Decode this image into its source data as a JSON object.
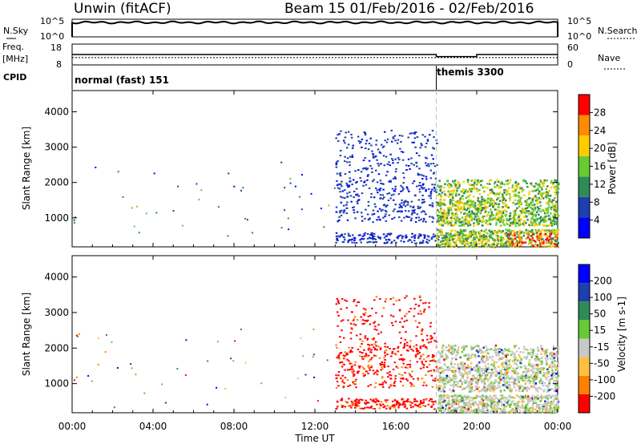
{
  "header": {
    "station": "Unwin (fitACF)",
    "beam_date": "Beam 15  01/Feb/2016 - 02/Feb/2016"
  },
  "time_axis": {
    "label": "Time UT",
    "ticks": [
      "00:00",
      "04:00",
      "08:00",
      "12:00",
      "16:00",
      "20:00",
      "00:00"
    ],
    "range_hours": [
      0,
      24
    ]
  },
  "noise_panel": {
    "left_label": "N.Sky",
    "right_label": "N.Search",
    "left_ticks": [
      "10^5",
      "10^0"
    ],
    "right_ticks": [
      "10^5",
      "10^0"
    ]
  },
  "freq_panel": {
    "left_label_1": "Freq.",
    "left_label_2": "[MHz]",
    "right_label": "Nave",
    "left_ticks": [
      "18",
      "8"
    ],
    "right_ticks": [
      "60",
      "0"
    ],
    "freq_mhz": 11.5,
    "nave_segments": [
      {
        "start_h": 0,
        "end_h": 18.0,
        "nave": 30
      },
      {
        "start_h": 18.0,
        "end_h": 20.0,
        "nave": 24
      },
      {
        "start_h": 20.0,
        "end_h": 24.0,
        "nave": 30
      }
    ]
  },
  "cpid_panel": {
    "label": "CPID",
    "modes": [
      {
        "name": "normal (fast) 151",
        "start_h": 0,
        "end_h": 18.0
      },
      {
        "name": "themis 3300",
        "start_h": 18.0,
        "end_h": 24.0
      }
    ]
  },
  "colors": {
    "power_scale": [
      "#0000ff",
      "#1d3fb0",
      "#2e8b57",
      "#66cc33",
      "#ffcc00",
      "#ff8c00",
      "#ff0000"
    ],
    "velocity_scale": [
      "#ff0000",
      "#ff8000",
      "#ffc040",
      "#c8c8c8",
      "#66cc33",
      "#2e8b57",
      "#1d3fb0",
      "#0000ff"
    ]
  },
  "chart_data": [
    {
      "type": "heatmap",
      "title": "",
      "xlabel": "Time UT",
      "ylabel": "Slant Range [km]",
      "ylim": [
        180,
        4600
      ],
      "yticks": [
        "1000",
        "2000",
        "3000",
        "4000"
      ],
      "colorbar_label": "Power [dB]",
      "colorbar_ticks": [
        "4",
        "8",
        "12",
        "16",
        "20",
        "24",
        "28"
      ],
      "scatter_regions": [
        {
          "t_start": 13.0,
          "t_end": 18.0,
          "r_start": 300,
          "r_end": 3500,
          "level": "low"
        },
        {
          "t_start": 18.0,
          "t_end": 24.0,
          "r_start": 250,
          "r_end": 2100,
          "level": "mixed"
        },
        {
          "t_start": 21.5,
          "t_end": 23.5,
          "r_start": 200,
          "r_end": 600,
          "level": "high"
        }
      ]
    },
    {
      "type": "heatmap",
      "title": "",
      "xlabel": "Time UT",
      "ylabel": "Slant Range [km]",
      "ylim": [
        180,
        4600
      ],
      "yticks": [
        "1000",
        "2000",
        "3000",
        "4000"
      ],
      "colorbar_label": "Velocity [m s-1]",
      "colorbar_ticks": [
        "200",
        "100",
        "50",
        "15",
        "-15",
        "-50",
        "-100",
        "-200"
      ],
      "scatter_regions": [
        {
          "t_start": 13.0,
          "t_end": 18.0,
          "r_start": 300,
          "r_end": 3500,
          "level": "negative"
        },
        {
          "t_start": 18.0,
          "t_end": 24.0,
          "r_start": 250,
          "r_end": 2100,
          "level": "near-zero"
        }
      ]
    }
  ]
}
